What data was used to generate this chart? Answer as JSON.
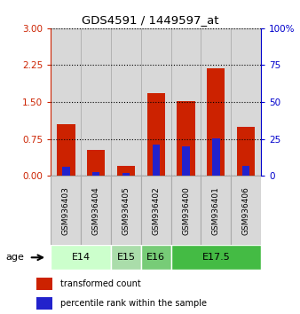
{
  "title": "GDS4591 / 1449597_at",
  "samples": [
    "GSM936403",
    "GSM936404",
    "GSM936405",
    "GSM936402",
    "GSM936400",
    "GSM936401",
    "GSM936406"
  ],
  "transformed_count": [
    1.05,
    0.52,
    0.2,
    1.68,
    1.52,
    2.18,
    1.0
  ],
  "percentile_rank_scaled": [
    0.18,
    0.07,
    0.05,
    0.63,
    0.6,
    0.77,
    0.2
  ],
  "age_groups": [
    {
      "label": "E14",
      "indices": [
        0,
        1
      ],
      "color": "#ccffcc"
    },
    {
      "label": "E15",
      "indices": [
        2
      ],
      "color": "#aaddaa"
    },
    {
      "label": "E16",
      "indices": [
        3
      ],
      "color": "#77cc77"
    },
    {
      "label": "E17.5",
      "indices": [
        4,
        5,
        6
      ],
      "color": "#44bb44"
    }
  ],
  "left_axis_color": "#cc2200",
  "right_axis_color": "#0000cc",
  "bar_color_red": "#cc2200",
  "bar_color_blue": "#2222cc",
  "yticks_left": [
    0,
    0.75,
    1.5,
    2.25,
    3
  ],
  "yticks_right": [
    0,
    25,
    50,
    75,
    100
  ],
  "ylim_left": [
    0,
    3
  ],
  "ylim_right": [
    0,
    100
  ],
  "bg_color": "#d8d8d8",
  "cell_edge_color": "#aaaaaa",
  "legend_red_label": "transformed count",
  "legend_blue_label": "percentile rank within the sample",
  "bar_width": 0.6,
  "blue_bar_width": 0.25
}
